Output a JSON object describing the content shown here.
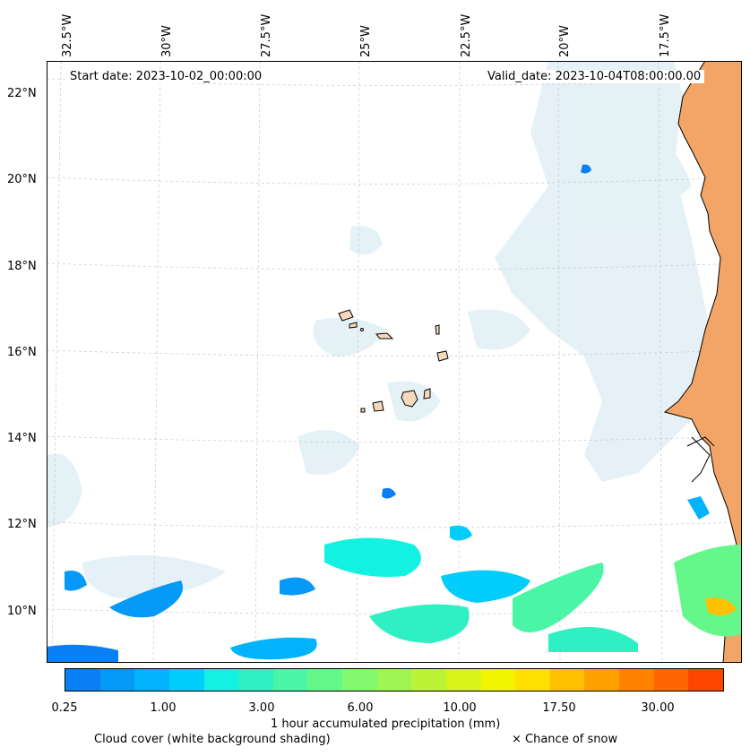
{
  "map": {
    "start_date": "Start date: 2023-10-02_00:00:00",
    "valid_date": "Valid_date: 2023-10-04T08:00:00.00",
    "lon_labels": [
      "32.5°W",
      "30°W",
      "27.5°W",
      "25°W",
      "22.5°W",
      "20°W",
      "17.5°W"
    ],
    "lat_labels": [
      "22°N",
      "20°N",
      "18°N",
      "16°N",
      "14°N",
      "12°N",
      "10°N"
    ]
  },
  "colorbar": {
    "title": "1 hour accumulated precipitation (mm)",
    "ticks": [
      "0.25",
      "1.00",
      "3.00",
      "6.00",
      "10.00",
      "17.50",
      "30.00"
    ],
    "colors": [
      "#0a7ff5",
      "#0599f8",
      "#00b3fb",
      "#00cdfa",
      "#13f2e2",
      "#2ef0c3",
      "#4af5a6",
      "#66f78a",
      "#82f96e",
      "#9ff552",
      "#bbf436",
      "#d7f41b",
      "#f1f500",
      "#ffdf00",
      "#ffc000",
      "#ffa200",
      "#ff8300",
      "#ff6500",
      "#ff4600"
    ]
  },
  "legend": {
    "cloud_cover": "Cloud cover (white background shading)",
    "snow": "× Chance of snow"
  },
  "colors": {
    "land": "#f3a567",
    "cloud": "#cfe6ee",
    "island_fill": "#f6d8bd"
  }
}
